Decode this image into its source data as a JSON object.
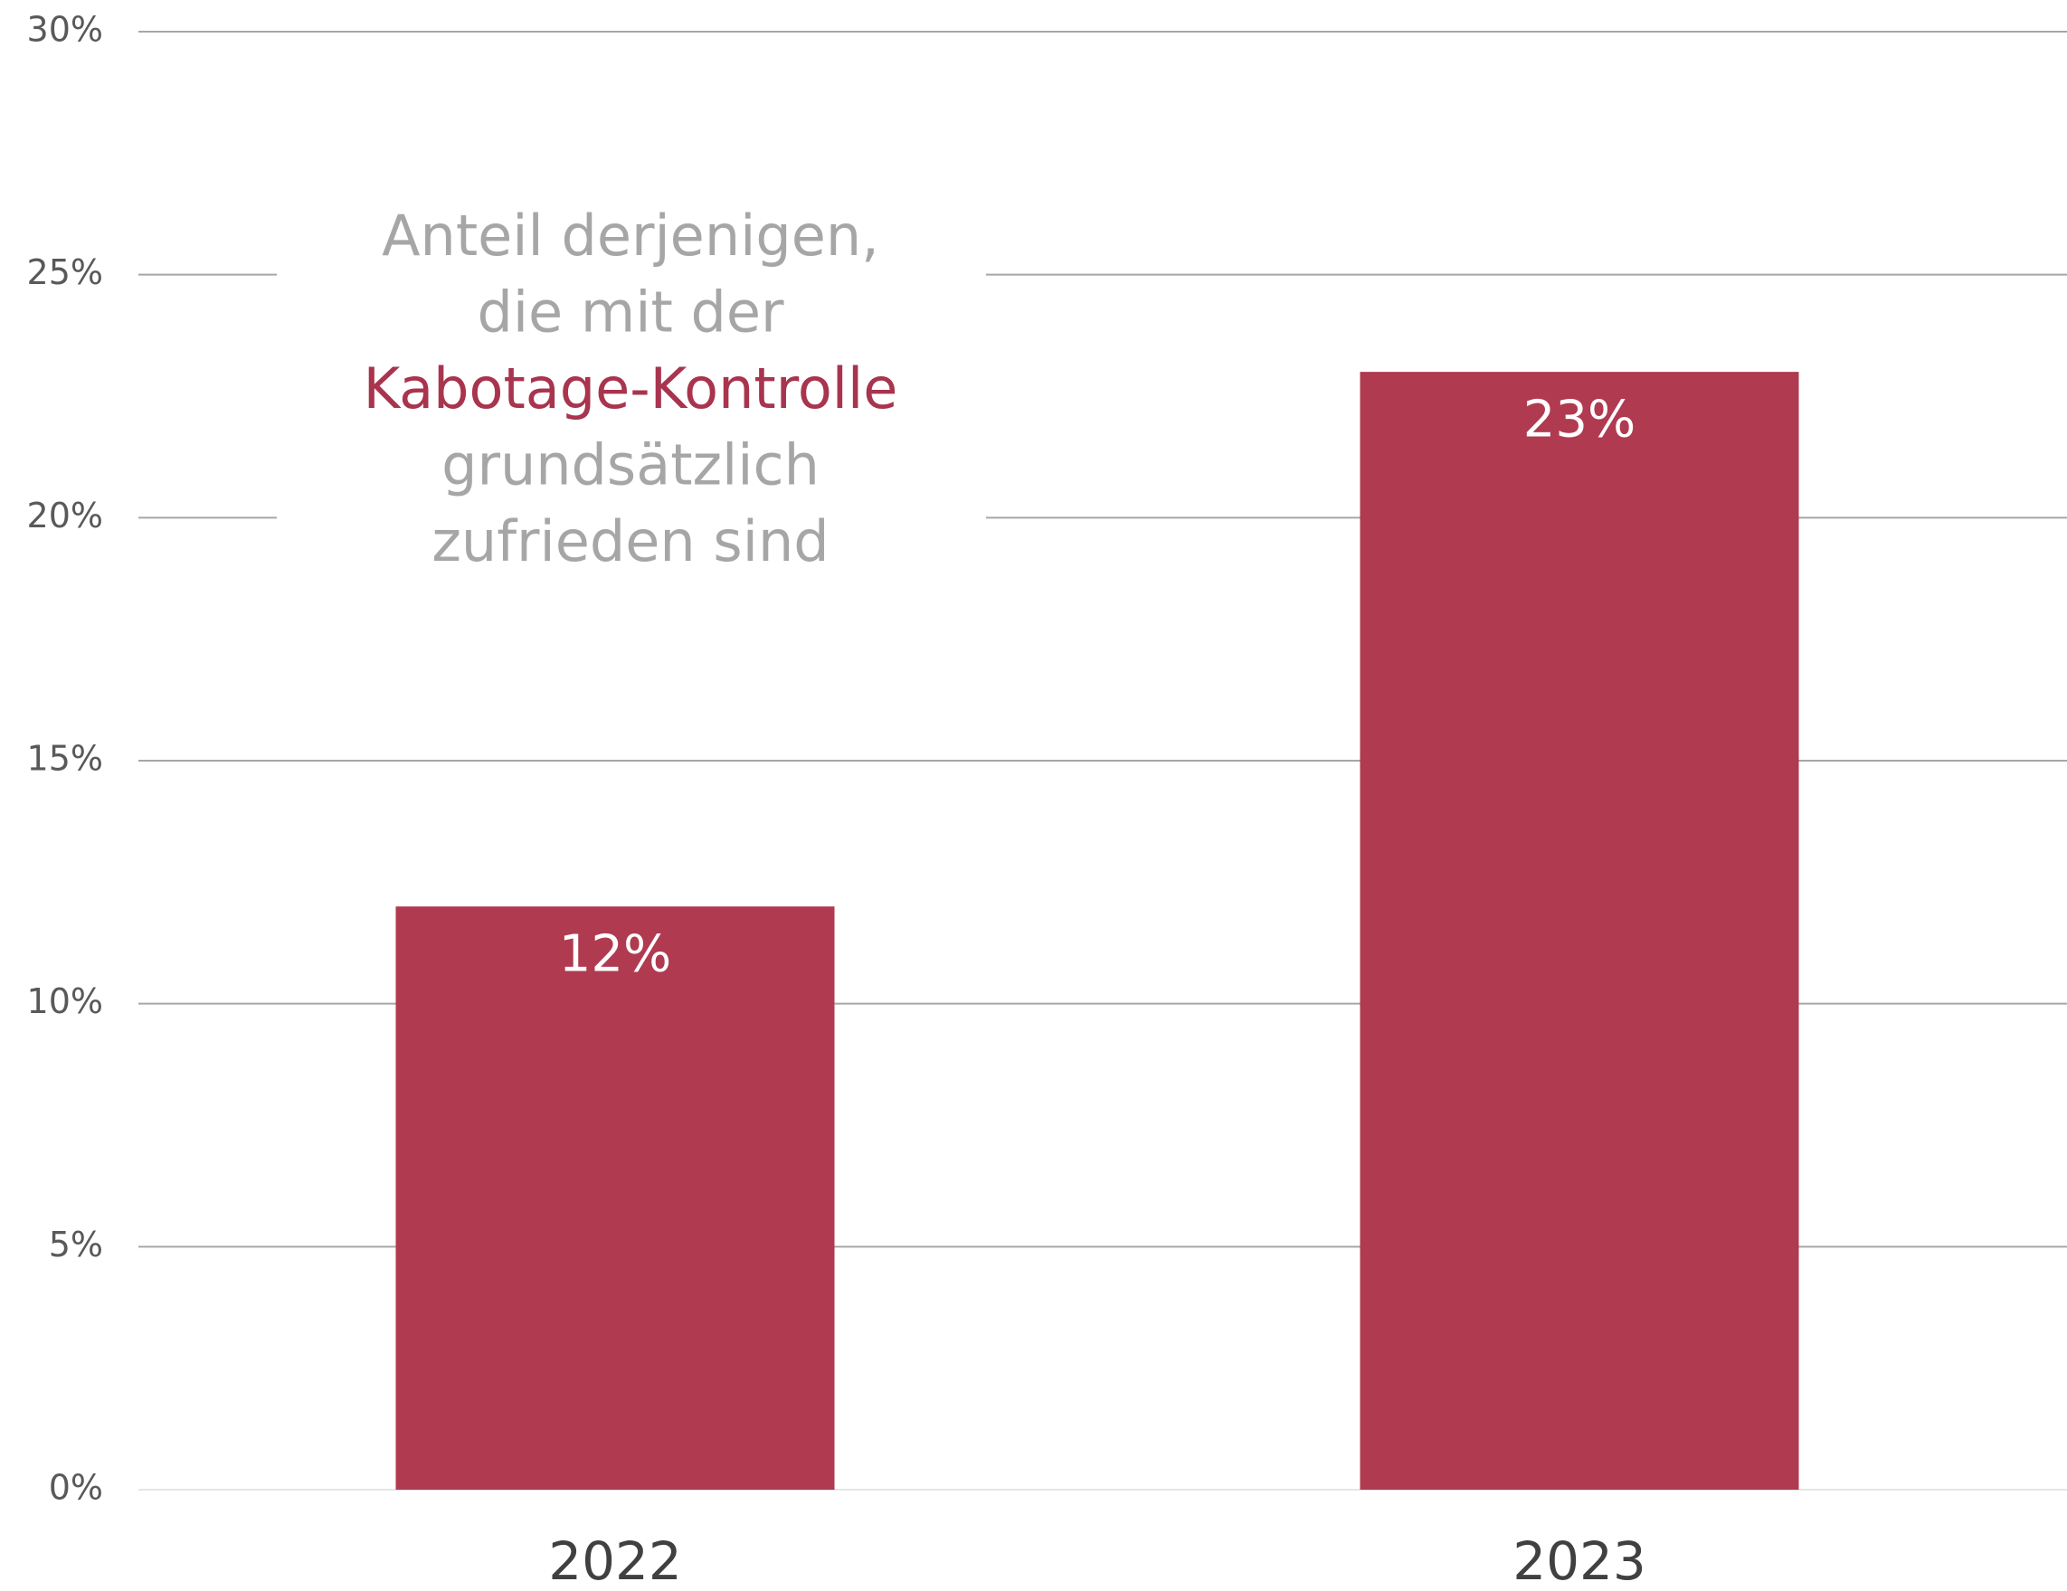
{
  "chart_data": {
    "type": "bar",
    "categories": [
      "2022",
      "2023"
    ],
    "values": [
      12,
      23
    ],
    "value_labels": [
      "12%",
      "23%"
    ],
    "color": "#b03a50",
    "ylim": [
      0,
      30
    ],
    "yticks": [
      {
        "value": 0,
        "label": "0%"
      },
      {
        "value": 5,
        "label": "5%"
      },
      {
        "value": 10,
        "label": "10%"
      },
      {
        "value": 15,
        "label": "15%"
      },
      {
        "value": 20,
        "label": "20%"
      },
      {
        "value": 25,
        "label": "25%"
      },
      {
        "value": 30,
        "label": "30%"
      }
    ],
    "grid": true,
    "annotation": [
      {
        "text": "Anteil derjenigen,",
        "color": "#a6a6a6"
      },
      {
        "text": "die mit der",
        "color": "#a6a6a6"
      },
      {
        "text": "Kabotage-Kontrolle",
        "color": "#a8344e"
      },
      {
        "text": "grundsätzlich",
        "color": "#a6a6a6"
      },
      {
        "text": "zufrieden sind",
        "color": "#a6a6a6"
      }
    ]
  }
}
